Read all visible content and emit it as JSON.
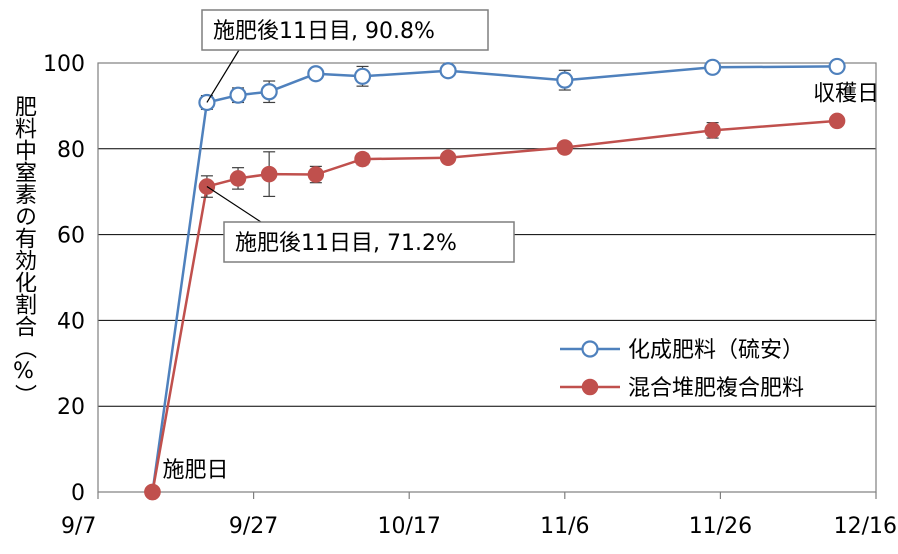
{
  "chart_data": {
    "type": "line",
    "title": "",
    "ylabel": "肥料中窒素の有効化割合（%）",
    "xlabel": "",
    "x_ticks": [
      "9/7",
      "9/27",
      "10/17",
      "11/6",
      "11/26",
      "12/16"
    ],
    "xlim": [
      "9/7",
      "12/16"
    ],
    "ylim": [
      0,
      100
    ],
    "y_ticks": [
      "0",
      "20",
      "40",
      "60",
      "80",
      "100"
    ],
    "grid": "horizontal",
    "legend_position": "bottom-right",
    "series": [
      {
        "name": "化成肥料（硫安）",
        "color": "#4f81bd",
        "marker": "open-circle",
        "x": [
          "9/14",
          "9/21",
          "9/25",
          "9/29",
          "10/5",
          "10/11",
          "10/22",
          "11/6",
          "11/25",
          "12/11"
        ],
        "y": [
          0,
          90.8,
          92.5,
          93.3,
          97.5,
          96.9,
          98.2,
          96.0,
          99.0,
          99.2
        ],
        "err": [
          0,
          1.6,
          1.7,
          2.5,
          0.8,
          2.3,
          0.8,
          2.3,
          0.5,
          0.5
        ]
      },
      {
        "name": "混合堆肥複合肥料",
        "color": "#c0504d",
        "marker": "filled-circle",
        "x": [
          "9/14",
          "9/21",
          "9/25",
          "9/29",
          "10/5",
          "10/11",
          "10/22",
          "11/6",
          "11/25",
          "12/11"
        ],
        "y": [
          0,
          71.2,
          73.1,
          74.1,
          74.0,
          77.6,
          77.9,
          80.3,
          84.3,
          86.5
        ],
        "err": [
          0,
          2.5,
          2.5,
          5.2,
          1.9,
          1.3,
          0.5,
          0.6,
          1.8,
          0.5
        ]
      }
    ],
    "annotations": [
      {
        "label": "施肥後11日目, 90.8%",
        "series": 0,
        "x": "9/21",
        "y": 90.8
      },
      {
        "label": "施肥後11日目, 71.2%",
        "series": 1,
        "x": "9/21",
        "y": 71.2
      },
      {
        "label": "施肥日",
        "x": "9/14",
        "y": 0
      },
      {
        "label": "収穫日",
        "x": "12/11",
        "y": 99.2
      }
    ]
  }
}
